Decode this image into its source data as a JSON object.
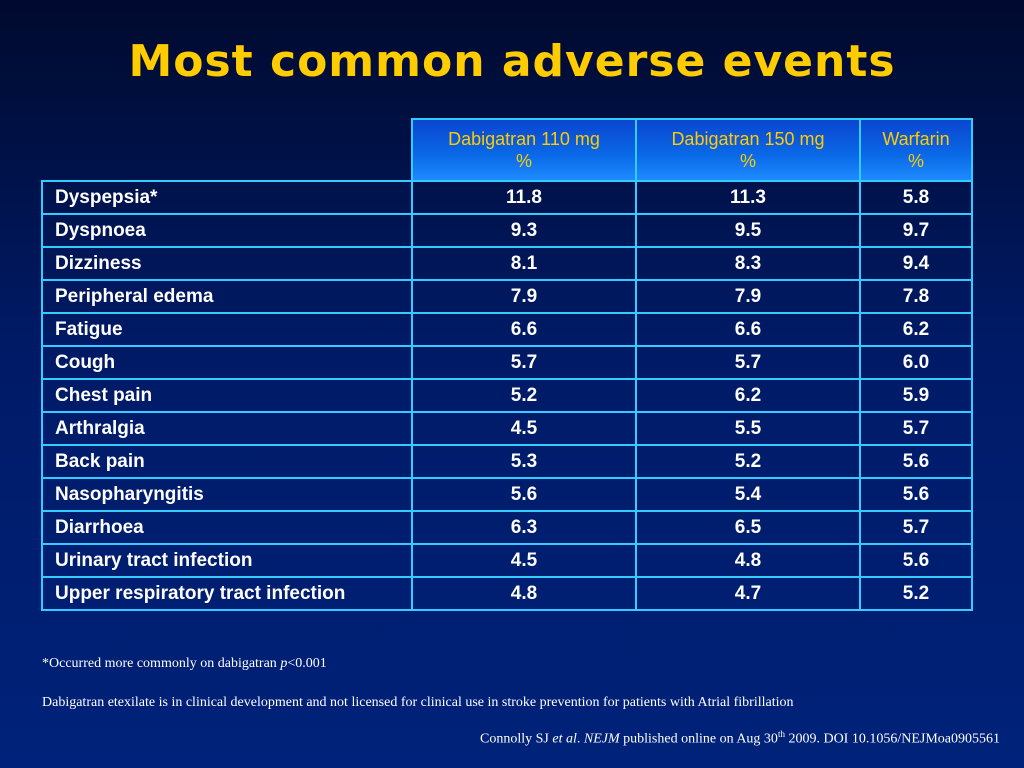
{
  "title": "Most common adverse events",
  "table": {
    "headers": [
      {
        "line1": "Dabigatran 110 mg",
        "line2": "%"
      },
      {
        "line1": "Dabigatran 150 mg",
        "line2": "%"
      },
      {
        "line1": "Warfarin",
        "line2": "%"
      }
    ],
    "rows": [
      {
        "label": "Dyspepsia*",
        "values": [
          "11.8",
          "11.3",
          "5.8"
        ]
      },
      {
        "label": "Dyspnoea",
        "values": [
          "9.3",
          "9.5",
          "9.7"
        ]
      },
      {
        "label": "Dizziness",
        "values": [
          "8.1",
          "8.3",
          "9.4"
        ]
      },
      {
        "label": "Peripheral edema",
        "values": [
          "7.9",
          "7.9",
          "7.8"
        ]
      },
      {
        "label": "Fatigue",
        "values": [
          "6.6",
          "6.6",
          "6.2"
        ]
      },
      {
        "label": "Cough",
        "values": [
          "5.7",
          "5.7",
          "6.0"
        ]
      },
      {
        "label": "Chest pain",
        "values": [
          "5.2",
          "6.2",
          "5.9"
        ]
      },
      {
        "label": "Arthralgia",
        "values": [
          "4.5",
          "5.5",
          "5.7"
        ]
      },
      {
        "label": "Back pain",
        "values": [
          "5.3",
          "5.2",
          "5.6"
        ]
      },
      {
        "label": "Nasopharyngitis",
        "values": [
          "5.6",
          "5.4",
          "5.6"
        ]
      },
      {
        "label": "Diarrhoea",
        "values": [
          "6.3",
          "6.5",
          "5.7"
        ]
      },
      {
        "label": "Urinary tract infection",
        "values": [
          "4.5",
          "4.8",
          "5.6"
        ]
      },
      {
        "label": "Upper respiratory tract infection",
        "values": [
          "4.8",
          "4.7",
          "5.2"
        ]
      }
    ]
  },
  "footnote": {
    "prefix": "*Occurred more commonly on dabigatran ",
    "p": "p",
    "suffix": "<0.001"
  },
  "note": "Dabigatran etexilate is in clinical development and not licensed for clinical use in stroke prevention for patients with Atrial fibrillation",
  "citation": {
    "author": "Connolly SJ ",
    "etal": "et al",
    "dot": ". ",
    "journal": "NEJM",
    "pub": " published online on Aug 30",
    "sup": "th",
    "rest": " 2009. DOI 10.1056/NEJMoa0905561"
  },
  "colors": {
    "title": "#ffcc00",
    "border": "#33ccff",
    "header_text": "#ffcc00",
    "background": "#001a66"
  }
}
